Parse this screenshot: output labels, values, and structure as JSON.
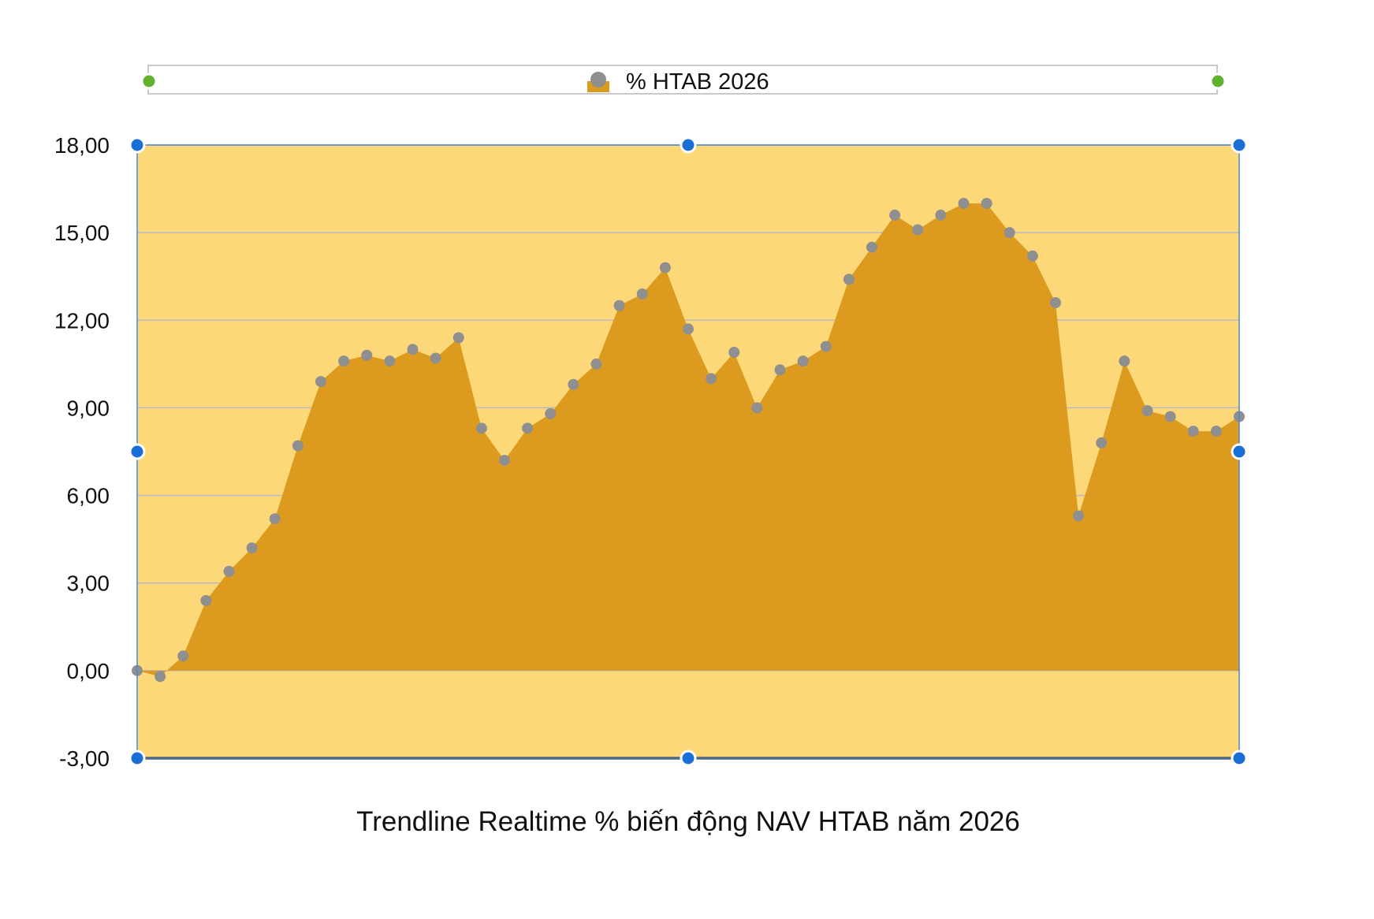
{
  "colors": {
    "plot_background": "#fdd878",
    "area_fill": "#dc9b1f",
    "marker": "#8f8f8f",
    "gridline": "#b9b9c2",
    "selection_handle": "#1a6fd6",
    "legend_handle": "#62b22f",
    "baseline": "#1a1a1a"
  },
  "chart_data": {
    "type": "area",
    "legend": {
      "label": "% HTAB 2026",
      "position": "top"
    },
    "caption": "Trendline Realtime % biến động NAV HTAB năm 2026",
    "ylim": [
      -3,
      18
    ],
    "yticks": [
      18,
      15,
      12,
      9,
      6,
      3,
      0,
      -3
    ],
    "ytick_labels": [
      "18,00",
      "15,00",
      "12,00",
      "9,00",
      "6,00",
      "3,00",
      "0,00",
      "-3,00"
    ],
    "grid": true,
    "series": [
      {
        "name": "% HTAB 2026",
        "values": [
          0.0,
          -0.2,
          0.5,
          2.4,
          3.4,
          4.2,
          5.2,
          7.7,
          9.9,
          10.6,
          10.8,
          10.6,
          11.0,
          10.7,
          11.4,
          8.3,
          7.2,
          8.3,
          8.8,
          9.8,
          10.5,
          12.5,
          12.9,
          13.8,
          11.7,
          10.0,
          10.9,
          9.0,
          10.3,
          10.6,
          11.1,
          13.4,
          14.5,
          15.6,
          15.1,
          15.6,
          16.0,
          16.0,
          15.0,
          14.2,
          12.6,
          5.3,
          7.8,
          10.6,
          8.9,
          8.7,
          8.2,
          8.2,
          8.7
        ]
      }
    ]
  }
}
